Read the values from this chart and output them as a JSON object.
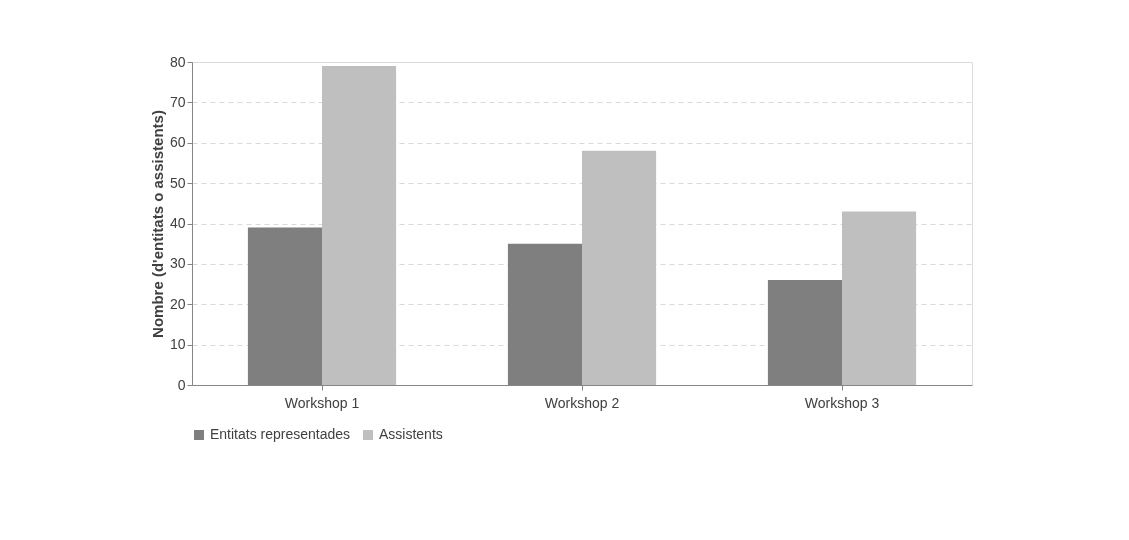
{
  "chart_data": {
    "type": "bar",
    "ylabel": "Nombre (d'entitats o assistents)",
    "categories": [
      "Workshop 1",
      "Workshop 2",
      "Workshop 3"
    ],
    "series": [
      {
        "name": "Entitats representades",
        "color": "#7f7f7f",
        "values": [
          39,
          35,
          26
        ]
      },
      {
        "name": "Assistents",
        "color": "#bfbfbf",
        "values": [
          79,
          58,
          43
        ]
      }
    ],
    "ylim": [
      0,
      80
    ],
    "yticks": [
      0,
      10,
      20,
      30,
      40,
      50,
      60,
      70,
      80
    ],
    "grid": "y",
    "legend": "bottom"
  }
}
